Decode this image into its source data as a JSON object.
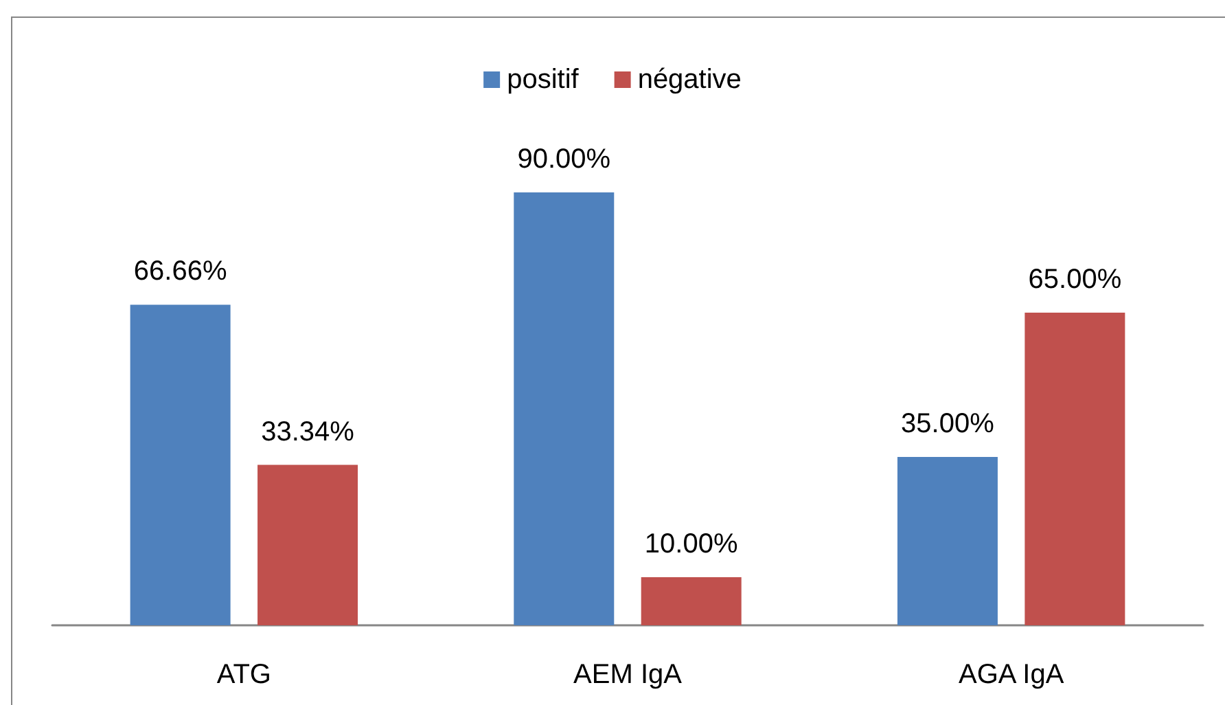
{
  "chart_data": {
    "type": "bar",
    "categories": [
      "ATG",
      "AEM IgA",
      "AGA IgA"
    ],
    "series": [
      {
        "name": "positif",
        "color": "#4f81bd",
        "values": [
          66.66,
          90,
          35
        ],
        "value_labels": [
          "66.66%",
          "90.00%",
          "35.00%"
        ]
      },
      {
        "name": "négative",
        "color": "#c0504d",
        "values": [
          33.34,
          10,
          65
        ],
        "value_labels": [
          "33.34%",
          "10.00%",
          "65.00%"
        ]
      }
    ],
    "legend": "top"
  }
}
